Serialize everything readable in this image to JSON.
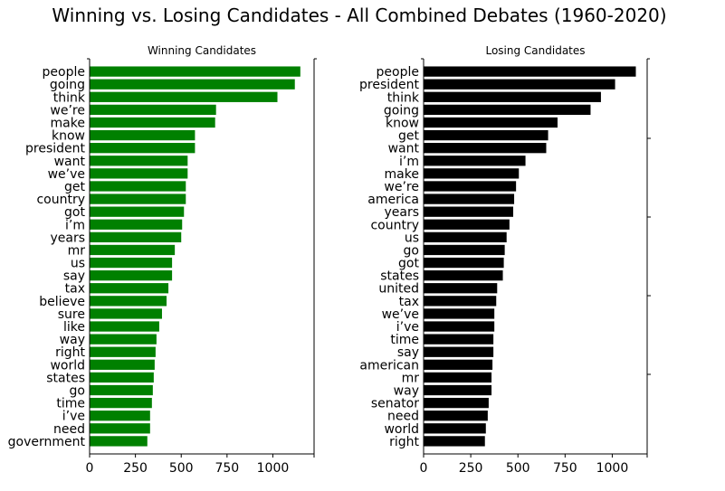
{
  "suptitle": "Winning vs. Losing Candidates - All Combined Debates (1960-2020)",
  "chart_data": [
    {
      "type": "bar",
      "orientation": "horizontal",
      "title": "Winning Candidates",
      "color": "#008000",
      "categories": [
        "people",
        "going",
        "think",
        "we’re",
        "make",
        "know",
        "president",
        "want",
        "we’ve",
        "get",
        "country",
        "got",
        "i’m",
        "years",
        "mr",
        "us",
        "say",
        "tax",
        "believe",
        "sure",
        "like",
        "way",
        "right",
        "world",
        "states",
        "go",
        "time",
        "i’ve",
        "need",
        "government"
      ],
      "values": [
        1150,
        1120,
        1025,
        690,
        685,
        575,
        575,
        535,
        535,
        525,
        525,
        515,
        505,
        500,
        465,
        450,
        450,
        430,
        420,
        395,
        380,
        365,
        360,
        355,
        350,
        345,
        340,
        330,
        330,
        315
      ],
      "xlim": [
        0,
        1225
      ],
      "xticks": [
        0,
        250,
        500,
        750,
        1000
      ]
    },
    {
      "type": "bar",
      "orientation": "horizontal",
      "title": "Losing Candidates",
      "color": "#000000",
      "categories": [
        "people",
        "president",
        "think",
        "going",
        "know",
        "get",
        "want",
        "i’m",
        "make",
        "we’re",
        "america",
        "years",
        "country",
        "us",
        "go",
        "got",
        "states",
        "united",
        "tax",
        "we’ve",
        "i’ve",
        "time",
        "say",
        "american",
        "mr",
        "way",
        "senator",
        "need",
        "world",
        "right"
      ],
      "values": [
        1125,
        1015,
        940,
        885,
        710,
        660,
        650,
        540,
        505,
        490,
        480,
        475,
        455,
        440,
        430,
        425,
        420,
        390,
        385,
        375,
        375,
        370,
        370,
        365,
        360,
        360,
        345,
        340,
        330,
        325
      ],
      "xlim": [
        0,
        1185
      ],
      "xticks": [
        0,
        250,
        500,
        750,
        1000
      ]
    }
  ]
}
